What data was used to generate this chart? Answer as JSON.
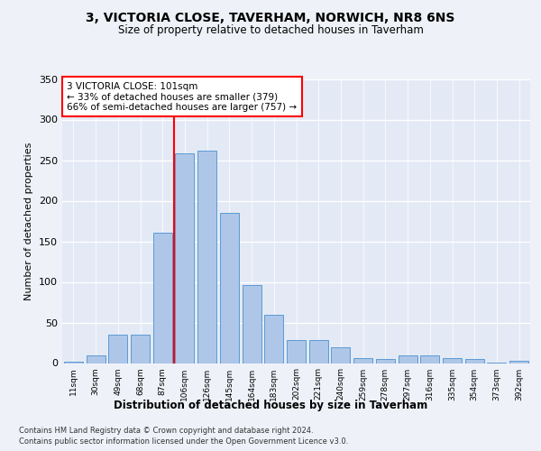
{
  "title1": "3, VICTORIA CLOSE, TAVERHAM, NORWICH, NR8 6NS",
  "title2": "Size of property relative to detached houses in Taverham",
  "xlabel": "Distribution of detached houses by size in Taverham",
  "ylabel": "Number of detached properties",
  "categories": [
    "11sqm",
    "30sqm",
    "49sqm",
    "68sqm",
    "87sqm",
    "106sqm",
    "126sqm",
    "145sqm",
    "164sqm",
    "183sqm",
    "202sqm",
    "221sqm",
    "240sqm",
    "259sqm",
    "278sqm",
    "297sqm",
    "316sqm",
    "335sqm",
    "354sqm",
    "373sqm",
    "392sqm"
  ],
  "values": [
    2,
    10,
    35,
    35,
    161,
    258,
    262,
    185,
    96,
    60,
    28,
    28,
    20,
    6,
    5,
    10,
    9,
    6,
    5,
    1,
    3
  ],
  "bar_color": "#aec6e8",
  "bar_edge_color": "#5b9bd5",
  "vline_pos": 4.5,
  "annotation_text": "3 VICTORIA CLOSE: 101sqm\n← 33% of detached houses are smaller (379)\n66% of semi-detached houses are larger (757) →",
  "footer1": "Contains HM Land Registry data © Crown copyright and database right 2024.",
  "footer2": "Contains public sector information licensed under the Open Government Licence v3.0.",
  "ylim": [
    0,
    350
  ],
  "bg_color": "#eef2f8",
  "plot_bg_color": "#e4eaf5"
}
